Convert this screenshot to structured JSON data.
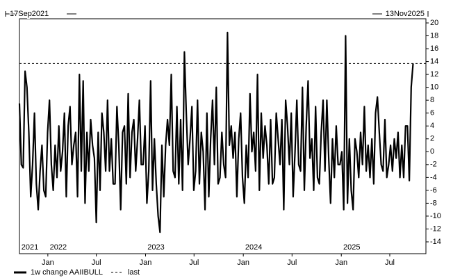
{
  "chart_data": {
    "type": "line",
    "start_label": "17Sep2021",
    "end_label": "13Nov2025",
    "xlim": [
      "2021-09-17",
      "2025-11-13"
    ],
    "xticks": [
      {
        "value": "2022-01-01",
        "label": "Jan"
      },
      {
        "value": "2022-07-01",
        "label": "Jul"
      },
      {
        "value": "2023-01-01",
        "label": "Jan"
      },
      {
        "value": "2023-07-01",
        "label": "Jul"
      },
      {
        "value": "2024-01-01",
        "label": "Jan"
      },
      {
        "value": "2024-07-01",
        "label": "Jul"
      },
      {
        "value": "2025-01-01",
        "label": "Jan"
      },
      {
        "value": "2025-07-01",
        "label": "Jul"
      }
    ],
    "year_labels": [
      {
        "value": "2021-09-17",
        "label": "2021"
      },
      {
        "value": "2022-01-01",
        "label": "2022"
      },
      {
        "value": "2023-01-01",
        "label": "2023"
      },
      {
        "value": "2024-01-01",
        "label": "2024"
      },
      {
        "value": "2025-01-01",
        "label": "2025"
      }
    ],
    "ylim": [
      -14,
      20
    ],
    "yticks": [
      -14,
      -12,
      -10,
      -8,
      -6,
      -4,
      -2,
      0,
      2,
      4,
      6,
      8,
      10,
      12,
      14,
      16,
      18,
      20
    ],
    "grid": false,
    "series": [
      {
        "name": "1w change AAIIBULL",
        "color": "#000000",
        "values": [
          7.5,
          -2,
          -2.5,
          12.5,
          10,
          3,
          -7,
          -2,
          6,
          -5,
          -9,
          -3,
          1,
          -6,
          -7,
          3,
          8,
          -2,
          -6,
          1,
          -4,
          4,
          -3,
          0,
          6,
          -7,
          4,
          7,
          -2,
          1,
          3,
          -7,
          12,
          -3,
          11,
          -8,
          3,
          -3,
          5,
          1,
          -1,
          -11,
          3,
          -6,
          6,
          3,
          -3,
          8,
          -3,
          2,
          -5,
          -5,
          7,
          1,
          -9,
          3,
          4,
          -5,
          9,
          -4,
          3,
          5,
          -3,
          2,
          8,
          -2,
          -2,
          4,
          -8,
          -3,
          11,
          -6,
          2,
          -5,
          -10,
          -12.5,
          1,
          -7,
          1,
          5,
          1,
          12,
          -3,
          -4,
          7,
          -5,
          5,
          -6,
          15.5,
          6,
          -2,
          2,
          7,
          -6,
          -3,
          8,
          -5,
          3,
          0,
          -9,
          6,
          -7,
          2,
          8,
          -2,
          10,
          -5,
          -4,
          3,
          -2,
          -4,
          18.5,
          1,
          4,
          -1,
          3,
          -7,
          2,
          6,
          -4,
          -8,
          1,
          -4,
          9,
          0,
          3,
          -3,
          12,
          -6,
          6,
          -1,
          4,
          1,
          -5,
          5,
          -5,
          -4,
          6,
          2,
          -2,
          5,
          -9,
          8,
          4,
          -2,
          6,
          -7,
          0,
          8,
          -2,
          -3,
          10,
          -6,
          4,
          11,
          -1,
          2,
          -6,
          7,
          -4,
          -5,
          3,
          8,
          -3,
          8,
          -1,
          -8,
          2,
          -4,
          4,
          -2,
          -2,
          0,
          -9,
          18,
          -8,
          2,
          -6,
          -9,
          2,
          0,
          -4,
          3,
          -2,
          7,
          -3,
          1,
          -4,
          2,
          -5,
          6,
          8.5,
          3,
          -2,
          -3,
          5,
          -4,
          -2,
          1,
          -3,
          2,
          -1,
          3,
          -4,
          1,
          -4,
          4,
          4,
          -4.5,
          10,
          13.7
        ]
      }
    ],
    "reference_line": {
      "name": "last",
      "value": 13.7,
      "color": "#000000"
    }
  }
}
